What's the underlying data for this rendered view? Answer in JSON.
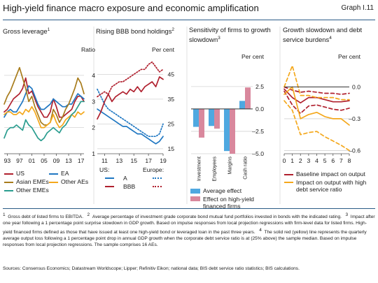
{
  "header": {
    "title": "High-yield finance macro exposure and economic amplification",
    "graph_no": "Graph I.11"
  },
  "colors": {
    "navy": "#1c2d6e",
    "blue": "#1f77c2",
    "red": "#b0202e",
    "gold": "#a87c1c",
    "orange": "#f4a81c",
    "teal": "#2a9d8f",
    "lightblue": "#4fa8e0",
    "pink": "#d9889d",
    "grid": "#d3d3d3",
    "rule": "#2a5b86"
  },
  "chart_data": [
    {
      "type": "line",
      "title": "Gross leverage",
      "title_note": "1",
      "unit": "Ratio",
      "x": [
        1992,
        1993,
        1994,
        1995,
        1996,
        1997,
        1998,
        1999,
        2000,
        2001,
        2002,
        2003,
        2004,
        2005,
        2006,
        2007,
        2008,
        2009,
        2010,
        2011,
        2012,
        2013,
        2014,
        2015,
        2016,
        2017,
        2018
      ],
      "xticks": [
        "93",
        "97",
        "01",
        "05",
        "09",
        "13",
        "17"
      ],
      "xtick_values": [
        1993,
        1997,
        2001,
        2005,
        2009,
        2013,
        2017
      ],
      "ylim": [
        1,
        4.8
      ],
      "yticks": [
        "1",
        "2",
        "3",
        "4"
      ],
      "series": [
        {
          "name": "US",
          "color": "#b0202e",
          "values": [
            2.6,
            2.7,
            2.9,
            3.1,
            3.2,
            3.3,
            3.5,
            3.9,
            3.3,
            3.4,
            3.1,
            2.8,
            2.6,
            2.4,
            2.4,
            2.6,
            3.1,
            2.8,
            2.4,
            2.4,
            2.5,
            2.6,
            2.7,
            3.0,
            3.2,
            3.2,
            3.0
          ]
        },
        {
          "name": "EA",
          "color": "#1f77c2",
          "values": [
            2.4,
            2.6,
            2.7,
            2.6,
            2.6,
            2.8,
            3.0,
            3.3,
            3.6,
            3.5,
            3.2,
            2.9,
            2.7,
            2.7,
            2.8,
            2.9,
            3.1,
            3.0,
            2.9,
            2.8,
            2.8,
            2.9,
            2.9,
            3.1,
            3.3,
            3.2,
            3.1
          ]
        },
        {
          "name": "Asian EMEs",
          "color": "#a87c1c",
          "values": [
            2.9,
            3.2,
            3.4,
            3.7,
            4.0,
            4.3,
            3.9,
            3.5,
            3.0,
            3.2,
            2.8,
            2.5,
            2.2,
            2.1,
            2.1,
            2.2,
            2.7,
            2.5,
            2.2,
            2.4,
            2.7,
            2.9,
            3.2,
            3.5,
            3.9,
            3.7,
            3.3
          ]
        },
        {
          "name": "Other AEs",
          "color": "#f4a81c",
          "values": [
            2.5,
            2.6,
            2.6,
            2.5,
            2.5,
            2.6,
            2.5,
            2.7,
            2.6,
            2.8,
            2.6,
            2.3,
            2.0,
            2.0,
            2.1,
            2.2,
            2.5,
            2.2,
            2.0,
            2.1,
            2.3,
            2.4,
            2.5,
            2.4,
            2.6,
            2.5,
            2.6
          ]
        },
        {
          "name": "Other EMEs",
          "color": "#2a9d8f",
          "values": [
            1.6,
            1.9,
            2.0,
            2.0,
            2.1,
            2.0,
            1.9,
            2.3,
            2.1,
            2.0,
            1.8,
            1.6,
            1.5,
            1.6,
            1.8,
            1.9,
            2.0,
            1.9,
            1.8,
            2.0,
            2.1,
            2.3,
            2.5,
            2.6,
            2.8,
            3.0,
            3.0
          ]
        }
      ]
    },
    {
      "type": "line",
      "title": "Rising BBB bond holdings",
      "title_note": "2",
      "unit": "Per cent",
      "x": [
        2010,
        2010.5,
        2011,
        2011.5,
        2012,
        2012.5,
        2013,
        2013.5,
        2014,
        2014.5,
        2015,
        2015.5,
        2016,
        2016.5,
        2017,
        2017.5,
        2018,
        2018.5,
        2019
      ],
      "xticks": [
        "11",
        "13",
        "15",
        "17",
        "19"
      ],
      "xtick_values": [
        2011,
        2013,
        2015,
        2017,
        2019
      ],
      "ylim": [
        13,
        53
      ],
      "yticks": [
        "15",
        "25",
        "35",
        "45"
      ],
      "series": [
        {
          "name": "US A",
          "color": "#1f77c2",
          "dash": "solid",
          "values": [
            31,
            30,
            29,
            28,
            27,
            26,
            25,
            24,
            24,
            23,
            22,
            21,
            21,
            20,
            19,
            18,
            17,
            18,
            20
          ]
        },
        {
          "name": "Europe A",
          "color": "#1f77c2",
          "dash": "dotted",
          "values": [
            39,
            36,
            33,
            31,
            30,
            29,
            28,
            27,
            26,
            25,
            24,
            23,
            22,
            21,
            20,
            20,
            20,
            21,
            25
          ]
        },
        {
          "name": "US BBB",
          "color": "#b0202e",
          "dash": "solid",
          "values": [
            27,
            30,
            34,
            37,
            34,
            36,
            37,
            38,
            37,
            39,
            38,
            40,
            38,
            40,
            41,
            42,
            40,
            44,
            43
          ]
        },
        {
          "name": "Europe BBB",
          "color": "#b0202e",
          "dash": "dotted",
          "values": [
            36,
            37,
            38,
            37,
            40,
            41,
            42,
            42,
            43,
            44,
            45,
            46,
            47,
            47,
            49,
            50,
            48,
            46,
            47
          ]
        }
      ]
    },
    {
      "type": "bar",
      "title": "Sensitivity of firms to growth slowdown",
      "title_note": "3",
      "unit": "Per cent",
      "categories": [
        "Investment",
        "Employees",
        "Margins",
        "Cash ratio"
      ],
      "ylim": [
        -5,
        5.3
      ],
      "yticks": [
        "2.5",
        "0.0",
        "–2.5",
        "–5.0"
      ],
      "ytick_values": [
        2.5,
        0,
        -2.5,
        -5
      ],
      "series": [
        {
          "name": "Average effect",
          "color": "#4fa8e0",
          "values": [
            -2.0,
            -1.9,
            -4.7,
            0.9
          ]
        },
        {
          "name": "Effect on high-yield financed firms",
          "color": "#d9889d",
          "values": [
            -3.2,
            -2.2,
            -5.0,
            2.4
          ]
        }
      ]
    },
    {
      "type": "line",
      "title": "Growth slowdown and debt service burdens",
      "title_note": "4",
      "unit": "Per cent",
      "x": [
        0,
        1,
        2,
        3,
        4,
        5,
        6,
        7,
        8
      ],
      "xticks": [
        "0",
        "1",
        "2",
        "3",
        "4",
        "5",
        "6",
        "7",
        "8"
      ],
      "ylim": [
        -0.63,
        0.24
      ],
      "yticks": [
        "0.0",
        "–0.3",
        "–0.6"
      ],
      "ytick_values": [
        0,
        -0.3,
        -0.6
      ],
      "series": [
        {
          "name": "Baseline impact on output",
          "color": "#b0202e",
          "values": [
            -0.02,
            -0.1,
            -0.15,
            -0.1,
            -0.1,
            -0.12,
            -0.14,
            -0.14,
            -0.13
          ]
        },
        {
          "name": "Baseline upper band",
          "color": "#b0202e",
          "dash": "dashed",
          "values": [
            0.0,
            -0.03,
            -0.05,
            -0.04,
            -0.05,
            -0.06,
            -0.06,
            -0.07,
            -0.06
          ]
        },
        {
          "name": "Baseline lower band",
          "color": "#b0202e",
          "dash": "dashed",
          "values": [
            -0.04,
            -0.17,
            -0.25,
            -0.18,
            -0.17,
            -0.19,
            -0.21,
            -0.22,
            -0.2
          ]
        },
        {
          "name": "Impact on output with high debt service ratio",
          "color": "#f4a81c",
          "values": [
            -0.07,
            0.0,
            -0.3,
            -0.26,
            -0.24,
            -0.28,
            -0.3,
            -0.3,
            -0.36
          ]
        },
        {
          "name": "High DSR upper band",
          "color": "#f4a81c",
          "dash": "dashed",
          "values": [
            0.0,
            0.2,
            -0.08,
            -0.08,
            -0.1,
            -0.1,
            -0.1,
            -0.12,
            -0.12
          ]
        },
        {
          "name": "High DSR lower band",
          "color": "#f4a81c",
          "dash": "dashed",
          "values": [
            -0.13,
            -0.22,
            -0.45,
            -0.43,
            -0.42,
            -0.47,
            -0.51,
            -0.55,
            -0.6
          ]
        }
      ]
    }
  ],
  "legends": {
    "p1": [
      {
        "label": "US",
        "color": "#b0202e"
      },
      {
        "label": "EA",
        "color": "#1f77c2"
      },
      {
        "label": "Asian EMEs",
        "color": "#a87c1c"
      },
      {
        "label": "Other AEs",
        "color": "#f4a81c"
      },
      {
        "label": "Other EMEs",
        "color": "#2a9d8f"
      }
    ],
    "p2": {
      "us_label": "US:",
      "europe_label": "Europe:",
      "a_label": "A",
      "bbb_label": "BBB"
    },
    "p3": [
      {
        "label": "Average effect",
        "color": "#4fa8e0"
      },
      {
        "label": "Effect on high-yield financed firms",
        "color": "#d9889d"
      }
    ],
    "p4": [
      {
        "label": "Baseline impact on output",
        "color": "#b0202e"
      },
      {
        "label": "Impact on output with high debt service ratio",
        "color": "#f4a81c"
      }
    ]
  },
  "footnotes": {
    "n1": "1",
    "t1": "Gross debt of listed firms to EBITDA.",
    "n2": "2",
    "t2": "Average percentage of investment grade corporate bond mutual fund portfolios invested in bonds with the indicated rating.",
    "n3": "3",
    "t3": "Impact after one year following a 1 percentage point surprise slowdown in GDP growth. Based on impulse responses from local projection regressions with firm-level data for listed firms. High-yield financed firms defined as those that have issued at least one high-yield bond or leveraged loan in the past three years.",
    "n4": "4",
    "t4": "The solid red (yellow) line represents the quarterly average output loss following a 1 percentage point drop in annual GDP growth when the corporate debt service ratio is at (25% above) the sample median. Based on impulse responses from local projection regressions. The sample comprises 16 AEs."
  },
  "sources": "Sources: Consensus Economics; Datastream Worldscope; Lipper; Refinitiv Eikon; national data; BIS debt service ratio statistics; BIS calculations."
}
